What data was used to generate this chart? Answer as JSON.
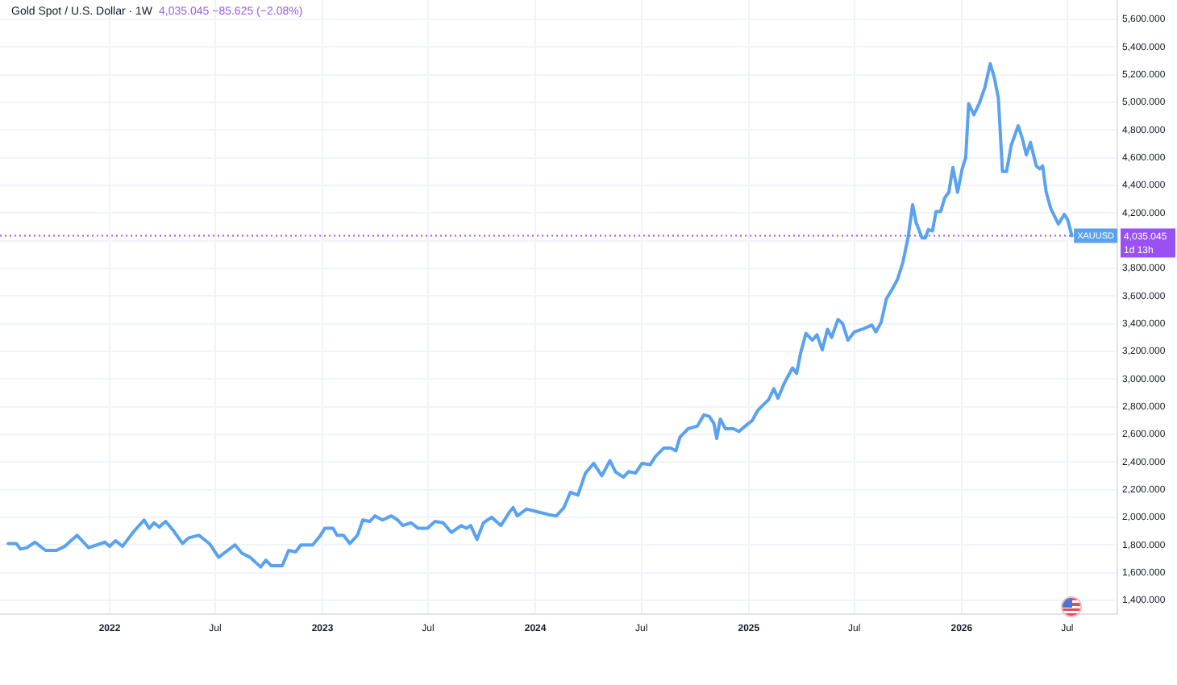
{
  "chart_data": {
    "type": "line",
    "title": "Gold Spot / U.S. Dollar · 1W",
    "subtitle": "4,035.045 −85.625 (−2.08%)",
    "annotations": [
      "1d 13h"
    ],
    "marker": "none",
    "grid": true,
    "xlim": [
      "2021-06-27",
      "2026-09-25"
    ],
    "xticks": [
      {
        "value": "2022-01",
        "label": "2022"
      },
      {
        "value": "2022-07",
        "label": "Jul"
      },
      {
        "value": "2023-01",
        "label": "2023"
      },
      {
        "value": "2023-07",
        "label": "Jul"
      },
      {
        "value": "2024-01",
        "label": "2024"
      },
      {
        "value": "2024-07",
        "label": "Jul"
      },
      {
        "value": "2025-01",
        "label": "2025"
      },
      {
        "value": "2025-07",
        "label": "Jul"
      },
      {
        "value": "2026-01",
        "label": "2026"
      },
      {
        "value": "2026-07",
        "label": "Jul"
      }
    ],
    "ylim": [
      1300,
      5740
    ],
    "yticks": [
      {
        "value": 1400,
        "label": "1,400.000"
      },
      {
        "value": 1600,
        "label": "1,600.000"
      },
      {
        "value": 1800,
        "label": "1,800.000"
      },
      {
        "value": 2000,
        "label": "2,000.000"
      },
      {
        "value": 2200,
        "label": "2,200.000"
      },
      {
        "value": 2400,
        "label": "2,400.000"
      },
      {
        "value": 2600,
        "label": "2,600.000"
      },
      {
        "value": 2800,
        "label": "2,800.000"
      },
      {
        "value": 3000,
        "label": "3,000.000"
      },
      {
        "value": 3200,
        "label": "3,200.000"
      },
      {
        "value": 3400,
        "label": "3,400.000"
      },
      {
        "value": 3600,
        "label": "3,600.000"
      },
      {
        "value": 3800,
        "label": "3,800.000"
      },
      {
        "value": 4000,
        "label": null
      },
      {
        "value": 4200,
        "label": "4,200.000"
      },
      {
        "value": 4400,
        "label": "4,400.000"
      },
      {
        "value": 4600,
        "label": "4,600.000"
      },
      {
        "value": 4800,
        "label": "4,800.000"
      },
      {
        "value": 5000,
        "label": "5,000.000"
      },
      {
        "value": 5200,
        "label": "5,200.000"
      },
      {
        "value": 5400,
        "label": "5,400.000"
      },
      {
        "value": 5600,
        "label": "5,600.000"
      }
    ],
    "ref_lines": [
      {
        "axis": "y",
        "value": 4035.045,
        "label": "4,035.045",
        "color": "#9951f2",
        "line_style": "dotted"
      }
    ],
    "series": [
      {
        "name": "XAUUSD",
        "color": "#5aa2f0",
        "x": [
          "2021-07-11",
          "2021-07-25",
          "2021-08-01",
          "2021-08-12",
          "2021-08-26",
          "2021-09-13",
          "2021-10-02",
          "2021-10-16",
          "2021-11-06",
          "2021-11-26",
          "2021-12-24",
          "2022-01-01",
          "2022-01-11",
          "2022-01-23",
          "2022-02-12",
          "2022-03-01",
          "2022-03-10",
          "2022-03-18",
          "2022-03-27",
          "2022-04-07",
          "2022-04-21",
          "2022-05-06",
          "2022-05-16",
          "2022-06-03",
          "2022-06-21",
          "2022-07-07",
          "2022-07-19",
          "2022-08-04",
          "2022-08-16",
          "2022-08-30",
          "2022-09-17",
          "2022-09-26",
          "2022-10-05",
          "2022-10-24",
          "2022-11-04",
          "2022-11-16",
          "2022-11-25",
          "2022-12-15",
          "2022-12-27",
          "2023-01-05",
          "2023-01-19",
          "2023-01-26",
          "2023-02-06",
          "2023-02-17",
          "2023-03-02",
          "2023-03-11",
          "2023-03-23",
          "2023-04-01",
          "2023-04-14",
          "2023-04-29",
          "2023-05-10",
          "2023-05-19",
          "2023-06-02",
          "2023-06-14",
          "2023-06-30",
          "2023-07-13",
          "2023-07-27",
          "2023-08-10",
          "2023-08-27",
          "2023-09-05",
          "2023-09-12",
          "2023-09-23",
          "2023-10-04",
          "2023-10-18",
          "2023-11-03",
          "2023-11-18",
          "2023-11-24",
          "2023-12-01",
          "2023-12-17",
          "2024-01-04",
          "2024-01-23",
          "2024-02-06",
          "2024-02-19",
          "2024-03-01",
          "2024-03-14",
          "2024-03-27",
          "2024-04-10",
          "2024-04-24",
          "2024-05-08",
          "2024-05-17",
          "2024-05-31",
          "2024-06-09",
          "2024-06-21",
          "2024-07-02",
          "2024-07-16",
          "2024-07-25",
          "2024-08-08",
          "2024-08-20",
          "2024-08-29",
          "2024-09-05",
          "2024-09-19",
          "2024-10-05",
          "2024-10-16",
          "2024-10-25",
          "2024-11-02",
          "2024-11-07",
          "2024-11-13",
          "2024-11-22",
          "2024-12-06",
          "2024-12-15",
          "2024-12-29",
          "2025-01-07",
          "2025-01-16",
          "2025-01-25",
          "2025-02-04",
          "2025-02-13",
          "2025-02-20",
          "2025-03-03",
          "2025-03-17",
          "2025-03-24",
          "2025-03-31",
          "2025-04-09",
          "2025-04-20",
          "2025-04-28",
          "2025-05-07",
          "2025-05-16",
          "2025-05-23",
          "2025-06-03",
          "2025-06-11",
          "2025-06-20",
          "2025-07-01",
          "2025-07-15",
          "2025-07-31",
          "2025-08-07",
          "2025-08-16",
          "2025-08-25",
          "2025-09-04",
          "2025-09-13",
          "2025-09-22",
          "2025-10-01",
          "2025-10-09",
          "2025-10-15",
          "2025-10-25",
          "2025-10-31",
          "2025-11-05",
          "2025-11-12",
          "2025-11-18",
          "2025-11-26",
          "2025-12-03",
          "2025-12-10",
          "2025-12-17",
          "2025-12-25",
          "2026-01-02",
          "2026-01-08",
          "2026-01-13",
          "2026-01-22",
          "2026-01-31",
          "2026-02-10",
          "2026-02-19",
          "2026-02-26",
          "2026-03-05",
          "2026-03-12",
          "2026-03-19",
          "2026-03-27",
          "2026-04-08",
          "2026-04-15",
          "2026-04-22",
          "2026-04-29",
          "2026-05-09",
          "2026-05-15",
          "2026-05-20",
          "2026-05-26",
          "2026-06-03",
          "2026-06-16",
          "2026-06-26",
          "2026-07-02",
          "2026-07-09"
        ],
        "values": [
          1810,
          1810,
          1770,
          1780,
          1820,
          1760,
          1760,
          1790,
          1870,
          1780,
          1820,
          1790,
          1830,
          1790,
          1900,
          1980,
          1920,
          1960,
          1930,
          1970,
          1900,
          1810,
          1850,
          1870,
          1810,
          1710,
          1750,
          1800,
          1740,
          1710,
          1640,
          1690,
          1650,
          1650,
          1760,
          1750,
          1800,
          1800,
          1860,
          1920,
          1920,
          1870,
          1870,
          1810,
          1870,
          1980,
          1970,
          2010,
          1980,
          2010,
          1980,
          1940,
          1960,
          1920,
          1920,
          1970,
          1960,
          1890,
          1940,
          1920,
          1940,
          1840,
          1960,
          2000,
          1940,
          2040,
          2070,
          2010,
          2060,
          2040,
          2020,
          2010,
          2070,
          2180,
          2160,
          2320,
          2390,
          2300,
          2410,
          2330,
          2290,
          2330,
          2320,
          2390,
          2380,
          2440,
          2500,
          2500,
          2480,
          2580,
          2640,
          2660,
          2740,
          2730,
          2680,
          2570,
          2710,
          2640,
          2640,
          2620,
          2670,
          2700,
          2770,
          2810,
          2850,
          2930,
          2860,
          2970,
          3080,
          3040,
          3190,
          3330,
          3280,
          3320,
          3210,
          3360,
          3300,
          3430,
          3400,
          3280,
          3340,
          3360,
          3390,
          3340,
          3410,
          3580,
          3650,
          3720,
          3840,
          4020,
          4260,
          4130,
          4020,
          4020,
          4080,
          4070,
          4210,
          4210,
          4310,
          4350,
          4530,
          4350,
          4520,
          4600,
          4990,
          4910,
          4990,
          5110,
          5280,
          5180,
          5030,
          4500,
          4500,
          4690,
          4830,
          4740,
          4620,
          4710,
          4540,
          4520,
          4540,
          4350,
          4230,
          4120,
          4190,
          4150,
          4035.045
        ]
      }
    ]
  }
}
